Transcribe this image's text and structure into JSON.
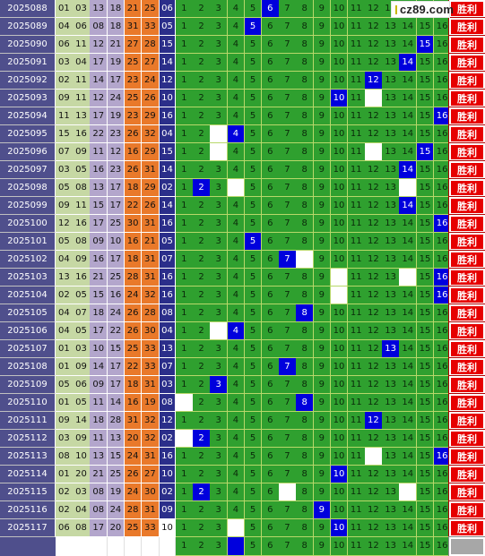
{
  "logo": {
    "text": "cz89.com"
  },
  "result_label": "胜利",
  "rows": [
    {
      "issue": "2025088",
      "nums": [
        "01",
        "03",
        "13",
        "18",
        "21",
        "25",
        "06"
      ],
      "hit": 6,
      "gaps": []
    },
    {
      "issue": "2025089",
      "nums": [
        "04",
        "06",
        "08",
        "18",
        "31",
        "33",
        "05"
      ],
      "hit": 5,
      "gaps": []
    },
    {
      "issue": "2025090",
      "nums": [
        "06",
        "11",
        "12",
        "21",
        "27",
        "28",
        "15"
      ],
      "hit": 15,
      "gaps": []
    },
    {
      "issue": "2025091",
      "nums": [
        "03",
        "04",
        "17",
        "19",
        "25",
        "27",
        "14"
      ],
      "hit": 14,
      "gaps": []
    },
    {
      "issue": "2025092",
      "nums": [
        "02",
        "11",
        "14",
        "17",
        "23",
        "24",
        "12"
      ],
      "hit": 12,
      "gaps": []
    },
    {
      "issue": "2025093",
      "nums": [
        "09",
        "11",
        "12",
        "24",
        "25",
        "26",
        "10"
      ],
      "hit": 10,
      "gaps": [
        12
      ]
    },
    {
      "issue": "2025094",
      "nums": [
        "11",
        "13",
        "17",
        "19",
        "23",
        "29",
        "16"
      ],
      "hit": 16,
      "gaps": []
    },
    {
      "issue": "2025095",
      "nums": [
        "15",
        "16",
        "22",
        "23",
        "26",
        "32",
        "04"
      ],
      "hit": 4,
      "gaps": [
        3
      ]
    },
    {
      "issue": "2025096",
      "nums": [
        "07",
        "09",
        "11",
        "12",
        "16",
        "29",
        "15"
      ],
      "hit": 15,
      "gaps": [
        3,
        12
      ]
    },
    {
      "issue": "2025097",
      "nums": [
        "03",
        "05",
        "16",
        "23",
        "26",
        "31",
        "14"
      ],
      "hit": 14,
      "gaps": []
    },
    {
      "issue": "2025098",
      "nums": [
        "05",
        "08",
        "13",
        "17",
        "18",
        "29",
        "02"
      ],
      "hit": 2,
      "gaps": [
        4,
        14
      ]
    },
    {
      "issue": "2025099",
      "nums": [
        "09",
        "11",
        "15",
        "17",
        "22",
        "26",
        "14"
      ],
      "hit": 14,
      "gaps": []
    },
    {
      "issue": "2025100",
      "nums": [
        "12",
        "16",
        "17",
        "25",
        "30",
        "31",
        "16"
      ],
      "hit": 16,
      "gaps": []
    },
    {
      "issue": "2025101",
      "nums": [
        "05",
        "08",
        "09",
        "10",
        "16",
        "21",
        "05"
      ],
      "hit": 5,
      "gaps": []
    },
    {
      "issue": "2025102",
      "nums": [
        "04",
        "09",
        "16",
        "17",
        "18",
        "31",
        "07"
      ],
      "hit": 7,
      "gaps": [
        8
      ]
    },
    {
      "issue": "2025103",
      "nums": [
        "13",
        "16",
        "21",
        "25",
        "28",
        "31",
        "16"
      ],
      "hit": 16,
      "gaps": [
        10,
        14
      ]
    },
    {
      "issue": "2025104",
      "nums": [
        "02",
        "05",
        "15",
        "16",
        "24",
        "32",
        "16"
      ],
      "hit": 16,
      "gaps": [
        10
      ]
    },
    {
      "issue": "2025105",
      "nums": [
        "04",
        "07",
        "18",
        "24",
        "26",
        "28",
        "08"
      ],
      "hit": 8,
      "gaps": []
    },
    {
      "issue": "2025106",
      "nums": [
        "04",
        "05",
        "17",
        "22",
        "26",
        "30",
        "04"
      ],
      "hit": 4,
      "gaps": [
        3
      ]
    },
    {
      "issue": "2025107",
      "nums": [
        "01",
        "03",
        "10",
        "15",
        "25",
        "33",
        "13"
      ],
      "hit": 13,
      "gaps": []
    },
    {
      "issue": "2025108",
      "nums": [
        "01",
        "09",
        "14",
        "17",
        "22",
        "33",
        "07"
      ],
      "hit": 7,
      "gaps": []
    },
    {
      "issue": "2025109",
      "nums": [
        "05",
        "06",
        "09",
        "17",
        "18",
        "31",
        "03"
      ],
      "hit": 3,
      "gaps": []
    },
    {
      "issue": "2025110",
      "nums": [
        "01",
        "05",
        "11",
        "14",
        "16",
        "19",
        "08"
      ],
      "hit": 8,
      "gaps": [
        1
      ]
    },
    {
      "issue": "2025111",
      "nums": [
        "09",
        "14",
        "18",
        "28",
        "31",
        "32",
        "12"
      ],
      "hit": 12,
      "gaps": []
    },
    {
      "issue": "2025112",
      "nums": [
        "03",
        "09",
        "11",
        "13",
        "20",
        "32",
        "02"
      ],
      "hit": 2,
      "gaps": [
        1
      ]
    },
    {
      "issue": "2025113",
      "nums": [
        "08",
        "10",
        "13",
        "15",
        "24",
        "31",
        "16"
      ],
      "hit": 16,
      "gaps": [
        12
      ]
    },
    {
      "issue": "2025114",
      "nums": [
        "01",
        "20",
        "21",
        "25",
        "26",
        "27",
        "10"
      ],
      "hit": 10,
      "gaps": []
    },
    {
      "issue": "2025115",
      "nums": [
        "02",
        "03",
        "08",
        "19",
        "24",
        "30",
        "02"
      ],
      "hit": 2,
      "gaps": [
        7,
        14
      ]
    },
    {
      "issue": "2025116",
      "nums": [
        "02",
        "04",
        "08",
        "24",
        "28",
        "31",
        "09"
      ],
      "hit": 9,
      "gaps": []
    },
    {
      "issue": "2025117",
      "nums": [
        "06",
        "08",
        "17",
        "20",
        "25",
        "33",
        "10"
      ],
      "hit": 10,
      "gaps": [
        4
      ]
    }
  ],
  "footer": {
    "hit": 4,
    "gaps": []
  },
  "colors": {
    "issue_bg": "#4f4f8c",
    "red_group_1": "#c6d8a4",
    "red_group_2": "#b3a6cc",
    "red_group_3": "#e9792a",
    "blue_ball": "#2b2e8a",
    "grid_green": "#2fa02f",
    "grid_hit": "#0000dd",
    "result_red": "#e60000"
  }
}
